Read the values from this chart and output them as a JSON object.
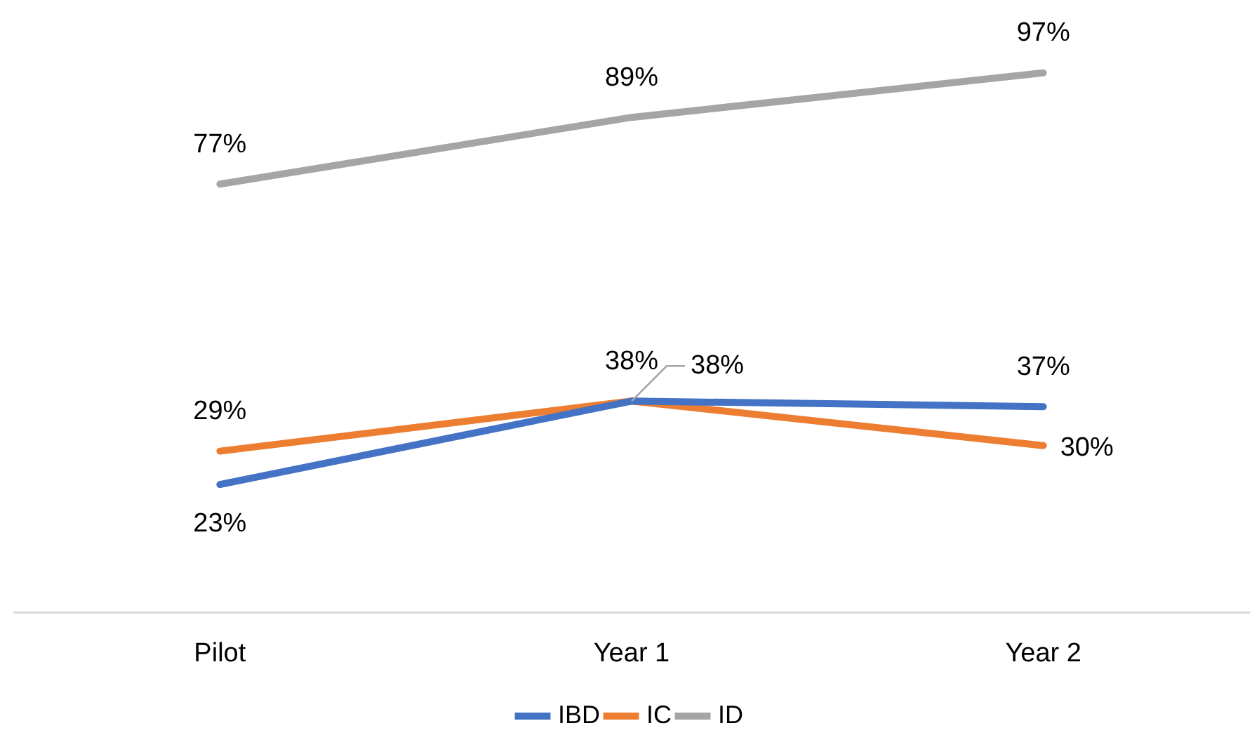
{
  "chart_data": {
    "type": "line",
    "categories": [
      "Pilot",
      "Year 1",
      "Year 2"
    ],
    "series": [
      {
        "name": "IBD",
        "color": "#4472c4",
        "values": [
          23,
          38,
          37
        ],
        "value_labels": [
          "23%",
          "38%",
          "37%"
        ]
      },
      {
        "name": "IC",
        "color": "#ed7d31",
        "values": [
          29,
          38,
          30
        ],
        "value_labels": [
          "29%",
          "38%",
          "30%"
        ]
      },
      {
        "name": "ID",
        "color": "#a5a5a5",
        "values": [
          77,
          89,
          97
        ],
        "value_labels": [
          "77%",
          "89%",
          "97%"
        ]
      }
    ],
    "grid": false,
    "legend": "bottom",
    "tick_labels": "x",
    "marker": "none",
    "line_style": "solid"
  }
}
